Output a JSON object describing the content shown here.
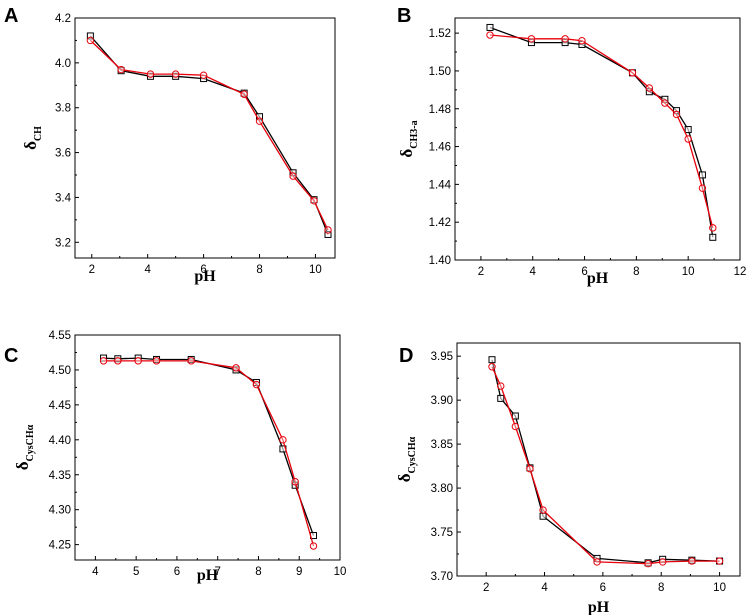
{
  "chart_data": [
    {
      "panel": "A",
      "type": "line",
      "xlabel": "pH",
      "ylabel": {
        "symbol": "δ",
        "subscript": "CH"
      },
      "xlim": [
        1.4,
        10.7
      ],
      "ylim": [
        3.13,
        4.2
      ],
      "xticks": [
        2,
        4,
        6,
        8,
        10
      ],
      "yticks": [
        3.2,
        3.4,
        3.6,
        3.8,
        4.0,
        4.2
      ],
      "ytick_labels": [
        "3.2",
        "3.4",
        "3.6",
        "3.8",
        "4.0",
        "4.2"
      ],
      "series": [
        {
          "name": "series-1",
          "marker": "square",
          "color": "#000000",
          "x": [
            1.95,
            3.05,
            4.1,
            5.0,
            6.0,
            7.45,
            8.0,
            9.2,
            9.95,
            10.45
          ],
          "y": [
            4.12,
            3.965,
            3.94,
            3.94,
            3.93,
            3.865,
            3.76,
            3.51,
            3.39,
            3.235
          ]
        },
        {
          "name": "series-2",
          "marker": "circle",
          "color": "#e8000b",
          "x": [
            1.95,
            3.05,
            4.1,
            5.0,
            6.0,
            7.45,
            8.0,
            9.2,
            9.95,
            10.45
          ],
          "y": [
            4.1,
            3.97,
            3.95,
            3.95,
            3.945,
            3.86,
            3.74,
            3.495,
            3.385,
            3.255
          ]
        }
      ]
    },
    {
      "panel": "B",
      "type": "line",
      "xlabel": "pH",
      "ylabel": {
        "symbol": "δ",
        "subscript": "CH3-a"
      },
      "xlim": [
        1.0,
        12.0
      ],
      "ylim": [
        1.4,
        1.528
      ],
      "xticks": [
        2,
        4,
        6,
        8,
        10,
        12
      ],
      "yticks": [
        1.4,
        1.42,
        1.44,
        1.46,
        1.48,
        1.5,
        1.52
      ],
      "ytick_labels": [
        "1.40",
        "1.42",
        "1.44",
        "1.46",
        "1.48",
        "1.50",
        "1.52"
      ],
      "series": [
        {
          "name": "series-1",
          "marker": "square",
          "color": "#000000",
          "x": [
            2.35,
            3.95,
            5.25,
            5.9,
            7.85,
            8.5,
            9.1,
            9.55,
            10.0,
            10.55,
            10.95
          ],
          "y": [
            1.523,
            1.515,
            1.515,
            1.514,
            1.499,
            1.489,
            1.485,
            1.479,
            1.469,
            1.445,
            1.412
          ]
        },
        {
          "name": "series-2",
          "marker": "circle",
          "color": "#e8000b",
          "x": [
            2.35,
            3.95,
            5.25,
            5.9,
            7.85,
            8.5,
            9.1,
            9.55,
            10.0,
            10.55,
            10.95
          ],
          "y": [
            1.519,
            1.517,
            1.517,
            1.516,
            1.499,
            1.491,
            1.483,
            1.477,
            1.464,
            1.438,
            1.417
          ]
        }
      ]
    },
    {
      "panel": "C",
      "type": "line",
      "xlabel": "pH",
      "ylabel": {
        "symbol": "δ",
        "subscript": "CysCHα"
      },
      "xlim": [
        3.5,
        10.0
      ],
      "ylim": [
        4.228,
        4.55
      ],
      "xticks": [
        4,
        5,
        6,
        7,
        8,
        9,
        10
      ],
      "yticks": [
        4.25,
        4.3,
        4.35,
        4.4,
        4.45,
        4.5,
        4.55
      ],
      "ytick_labels": [
        "4.25",
        "4.30",
        "4.35",
        "4.40",
        "4.45",
        "4.50",
        "4.55"
      ],
      "series": [
        {
          "name": "series-1",
          "marker": "square",
          "color": "#000000",
          "x": [
            4.2,
            4.55,
            5.05,
            5.5,
            6.35,
            7.45,
            7.95,
            8.6,
            8.9,
            9.35
          ],
          "y": [
            4.517,
            4.516,
            4.517,
            4.515,
            4.515,
            4.5,
            4.482,
            4.387,
            4.335,
            4.263
          ]
        },
        {
          "name": "series-2",
          "marker": "circle",
          "color": "#e8000b",
          "x": [
            4.2,
            4.55,
            5.05,
            5.5,
            6.35,
            7.45,
            7.95,
            8.6,
            8.9,
            9.35
          ],
          "y": [
            4.513,
            4.513,
            4.513,
            4.513,
            4.513,
            4.503,
            4.479,
            4.4,
            4.34,
            4.248
          ]
        }
      ]
    },
    {
      "panel": "D",
      "type": "line",
      "xlabel": "pH",
      "ylabel": {
        "symbol": "δ",
        "subscript": "CysCHα"
      },
      "xlim": [
        1.0,
        10.7
      ],
      "ylim": [
        3.7,
        3.965
      ],
      "xticks": [
        2,
        4,
        6,
        8,
        10
      ],
      "yticks": [
        3.7,
        3.75,
        3.8,
        3.85,
        3.9,
        3.95
      ],
      "ytick_labels": [
        "3.70",
        "3.75",
        "3.80",
        "3.85",
        "3.90",
        "3.95"
      ],
      "series": [
        {
          "name": "series-1",
          "marker": "square",
          "color": "#000000",
          "x": [
            2.2,
            2.5,
            3.0,
            3.5,
            3.95,
            5.8,
            7.55,
            8.05,
            9.05,
            10.0
          ],
          "y": [
            3.946,
            3.902,
            3.882,
            3.823,
            3.768,
            3.72,
            3.715,
            3.719,
            3.718,
            3.717
          ]
        },
        {
          "name": "series-2",
          "marker": "circle",
          "color": "#e8000b",
          "x": [
            2.2,
            2.5,
            3.0,
            3.5,
            3.95,
            5.8,
            7.55,
            8.05,
            9.05,
            10.0
          ],
          "y": [
            3.938,
            3.916,
            3.87,
            3.822,
            3.775,
            3.716,
            3.714,
            3.716,
            3.717,
            3.717
          ]
        }
      ]
    }
  ]
}
